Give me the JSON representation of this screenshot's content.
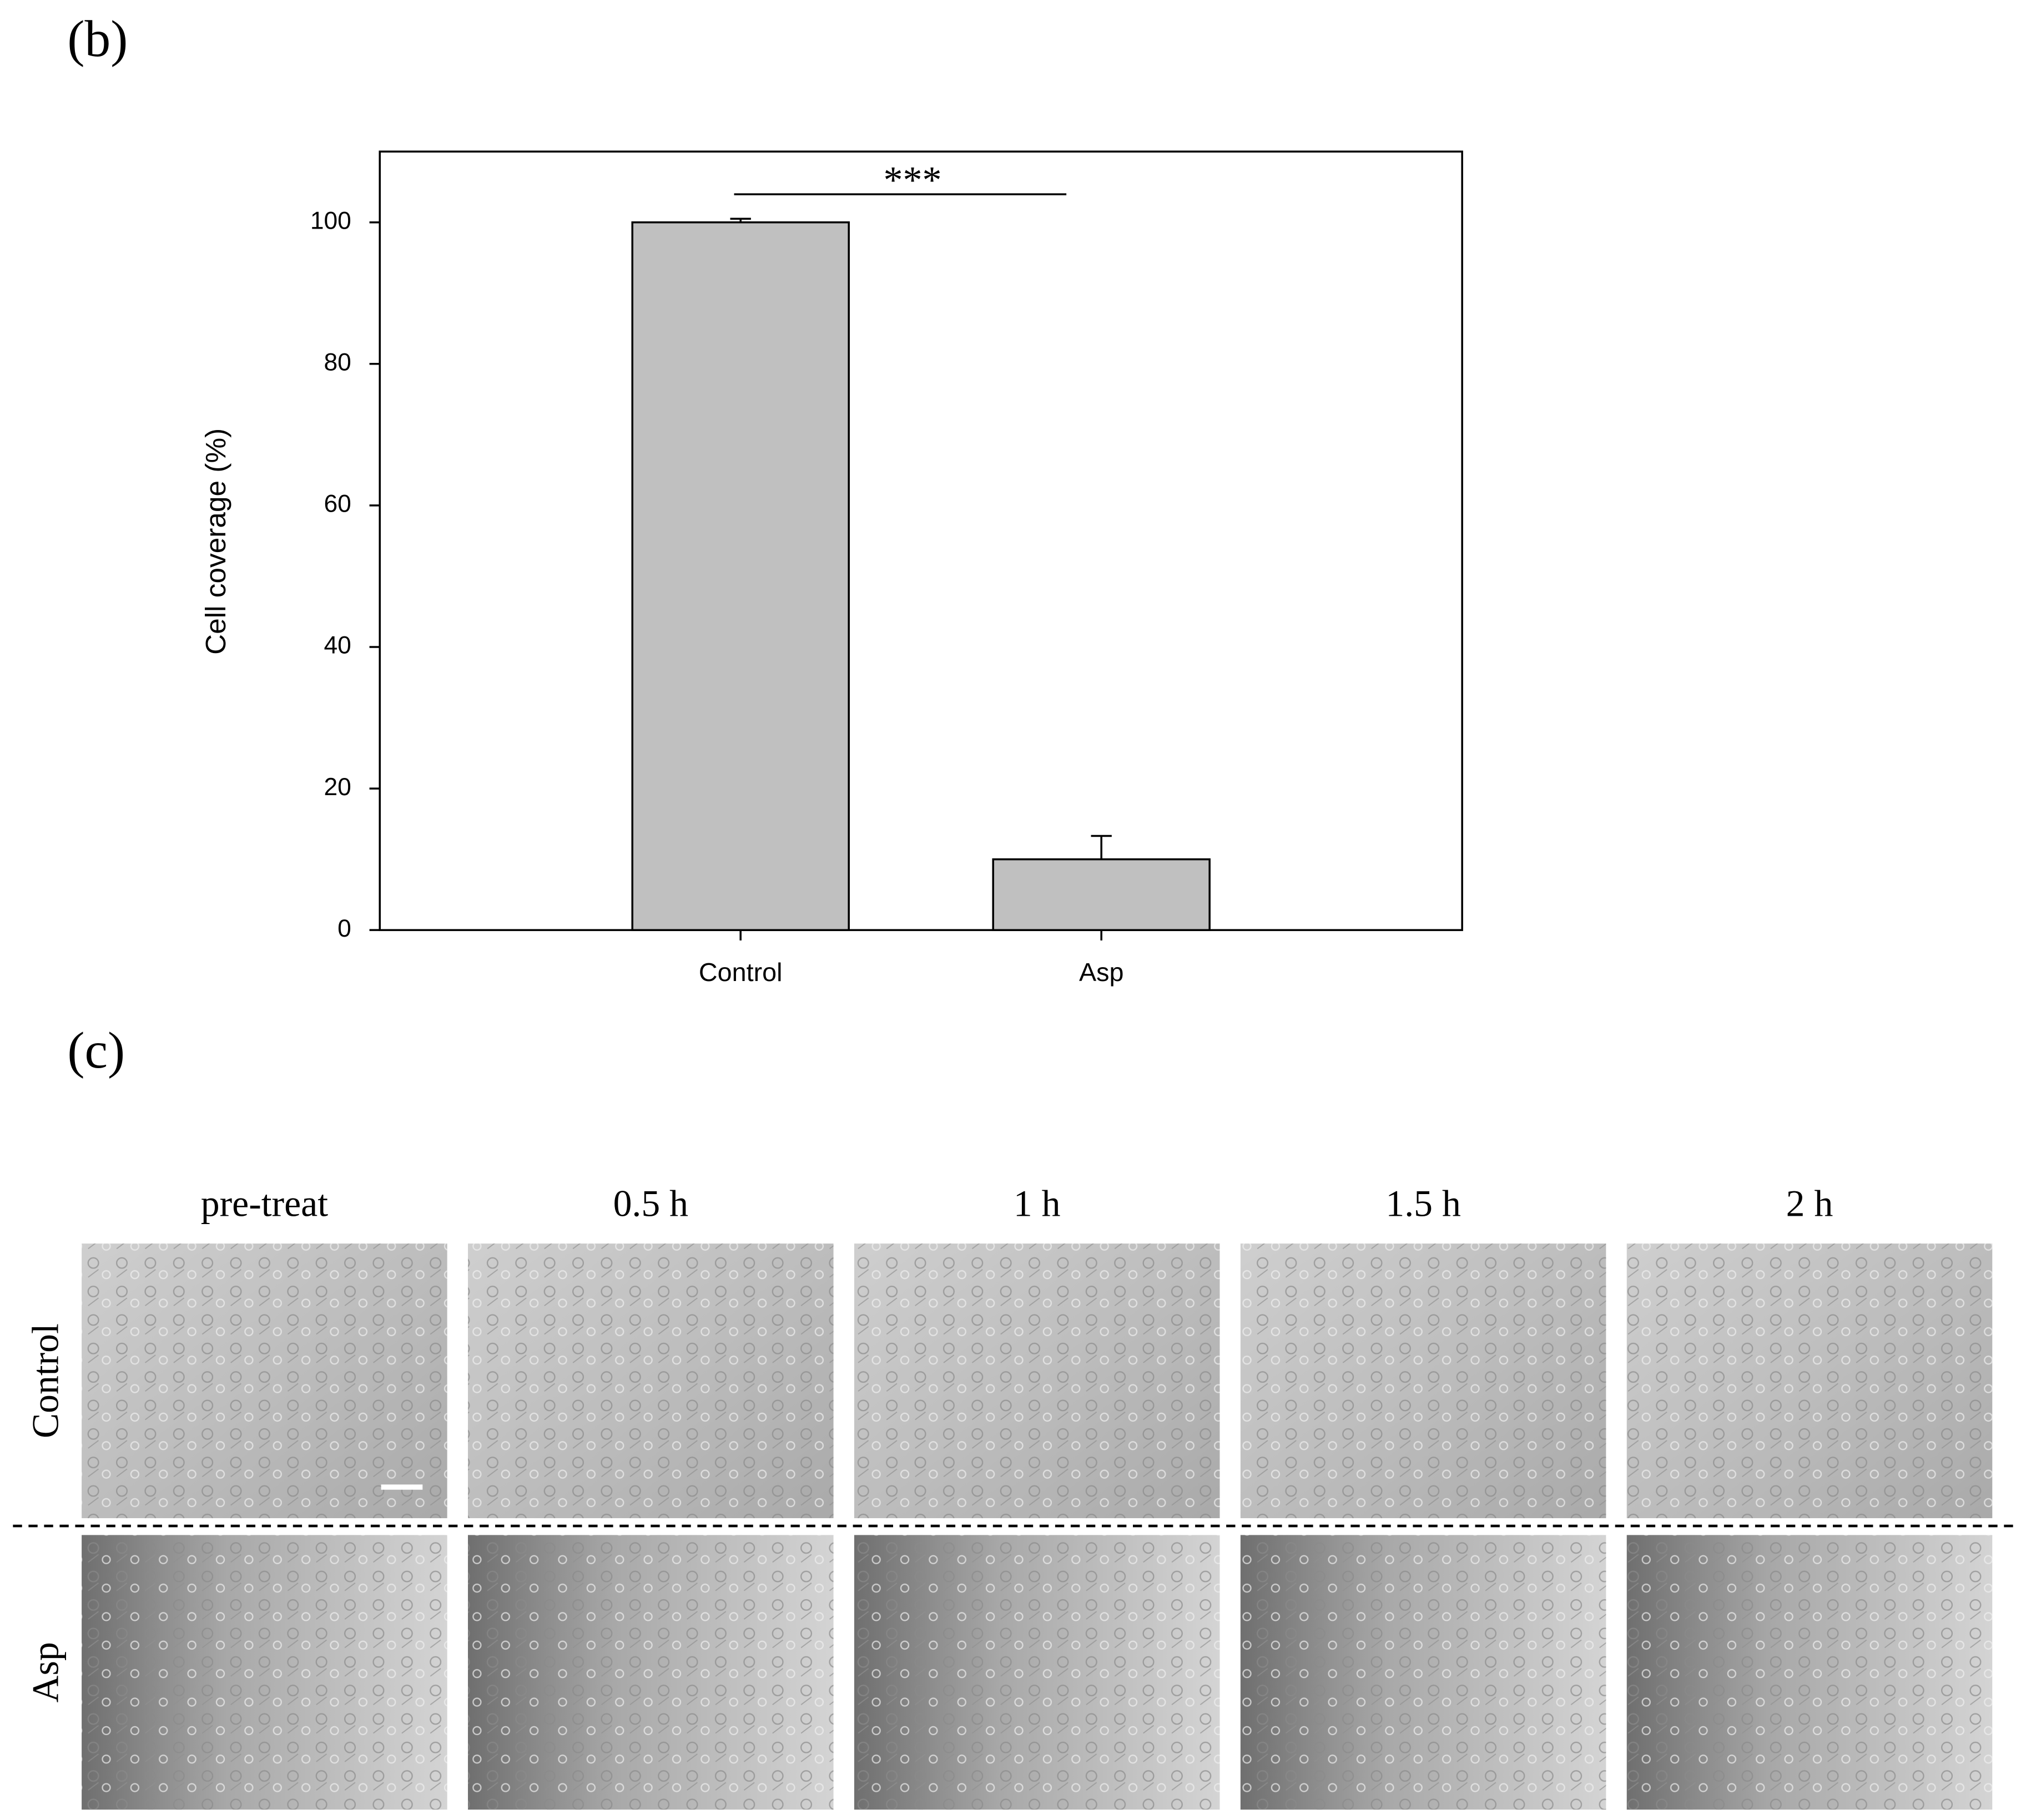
{
  "panel_labels": [
    "(b)",
    "(c)"
  ],
  "chart_data": {
    "type": "bar",
    "y_label": "Cell coverage (%)",
    "categories": [
      "Control",
      "Asp"
    ],
    "values": [
      100,
      10
    ],
    "errors": [
      0.5,
      3.3
    ],
    "color": "#c0c0c0",
    "ylim": [
      0,
      110
    ],
    "yticks": [
      0,
      20,
      40,
      60,
      80,
      100
    ],
    "annotation": "***"
  },
  "micrographs": {
    "columns": [
      "pre-treat",
      "0.5 h",
      "1 h",
      "1.5 h",
      "2 h"
    ],
    "rows": [
      "Control",
      "Asp"
    ]
  }
}
